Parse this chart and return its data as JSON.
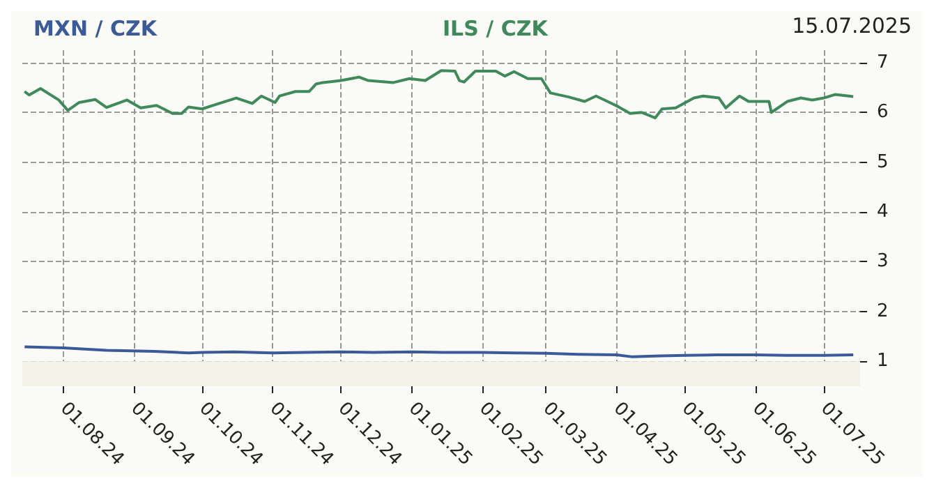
{
  "chart_data": {
    "type": "line",
    "annotations": [
      "15.07.2025"
    ],
    "legend": "top left",
    "grid": true,
    "line_style": "solid",
    "marker": "none",
    "xlim": [
      "2024-07-14",
      "2025-07-17"
    ],
    "ylim": [
      0.5,
      7.25
    ],
    "yticks": [
      1,
      2,
      3,
      4,
      5,
      6,
      7
    ],
    "xticks": [
      {
        "value": "2024-08-01",
        "label": "01.08.24"
      },
      {
        "value": "2024-09-01",
        "label": "01.09.24"
      },
      {
        "value": "2024-10-01",
        "label": "01.10.24"
      },
      {
        "value": "2024-11-01",
        "label": "01.11.24"
      },
      {
        "value": "2024-12-01",
        "label": "01.12.24"
      },
      {
        "value": "2025-01-01",
        "label": "01.01.25"
      },
      {
        "value": "2025-02-01",
        "label": "01.02.25"
      },
      {
        "value": "2025-03-01",
        "label": "01.03.25"
      },
      {
        "value": "2025-04-01",
        "label": "01.04.25"
      },
      {
        "value": "2025-05-01",
        "label": "01.05.25"
      },
      {
        "value": "2025-06-01",
        "label": "01.06.25"
      },
      {
        "value": "2025-07-01",
        "label": "01.07.25"
      }
    ],
    "bands": [
      {
        "axis": "y",
        "from": 0.5,
        "to": 1,
        "color": "#f2f2e8"
      }
    ],
    "series": [
      {
        "name": "MXN / CZK",
        "color": "#3a5a9a",
        "x": [
          "2024-07-15",
          "2024-08-01",
          "2024-08-20",
          "2024-09-10",
          "2024-09-25",
          "2024-10-01",
          "2024-10-15",
          "2024-11-01",
          "2024-11-15",
          "2024-12-01",
          "2024-12-15",
          "2025-01-01",
          "2025-01-15",
          "2025-02-01",
          "2025-02-15",
          "2025-03-01",
          "2025-03-15",
          "2025-04-01",
          "2025-04-08",
          "2025-04-20",
          "2025-05-01",
          "2025-05-15",
          "2025-06-01",
          "2025-06-15",
          "2025-07-01",
          "2025-07-14"
        ],
        "values": [
          1.29,
          1.27,
          1.22,
          1.2,
          1.17,
          1.18,
          1.19,
          1.17,
          1.18,
          1.19,
          1.18,
          1.19,
          1.18,
          1.18,
          1.17,
          1.16,
          1.14,
          1.13,
          1.09,
          1.11,
          1.12,
          1.13,
          1.13,
          1.12,
          1.12,
          1.13
        ]
      },
      {
        "name": "ILS / CZK",
        "color": "#3f8a5a",
        "x": [
          "2024-07-15",
          "2024-07-17",
          "2024-07-22",
          "2024-07-30",
          "2024-08-03",
          "2024-08-08",
          "2024-08-15",
          "2024-08-20",
          "2024-08-29",
          "2024-09-04",
          "2024-09-11",
          "2024-09-18",
          "2024-09-22",
          "2024-09-25",
          "2024-10-01",
          "2024-10-07",
          "2024-10-16",
          "2024-10-23",
          "2024-10-27",
          "2024-11-02",
          "2024-11-04",
          "2024-11-11",
          "2024-11-17",
          "2024-11-20",
          "2024-11-23",
          "2024-12-01",
          "2024-12-09",
          "2024-12-13",
          "2024-12-24",
          "2024-12-31",
          "2025-01-07",
          "2025-01-14",
          "2025-01-20",
          "2025-01-22",
          "2025-01-24",
          "2025-01-29",
          "2025-02-07",
          "2025-02-11",
          "2025-02-15",
          "2025-02-21",
          "2025-02-27",
          "2025-03-03",
          "2025-03-11",
          "2025-03-18",
          "2025-03-23",
          "2025-03-29",
          "2025-04-02",
          "2025-04-07",
          "2025-04-12",
          "2025-04-18",
          "2025-04-21",
          "2025-04-27",
          "2025-05-05",
          "2025-05-09",
          "2025-05-16",
          "2025-05-19",
          "2025-05-25",
          "2025-05-29",
          "2025-06-07",
          "2025-06-08",
          "2025-06-15",
          "2025-06-21",
          "2025-06-26",
          "2025-07-01",
          "2025-07-06",
          "2025-07-14"
        ],
        "values": [
          6.42,
          6.35,
          6.48,
          6.25,
          6.04,
          6.2,
          6.26,
          6.1,
          6.25,
          6.09,
          6.14,
          5.98,
          5.98,
          6.11,
          6.07,
          6.16,
          6.29,
          6.18,
          6.33,
          6.2,
          6.33,
          6.42,
          6.42,
          6.57,
          6.6,
          6.64,
          6.71,
          6.64,
          6.6,
          6.68,
          6.64,
          6.84,
          6.83,
          6.64,
          6.61,
          6.83,
          6.83,
          6.73,
          6.82,
          6.68,
          6.68,
          6.39,
          6.31,
          6.22,
          6.33,
          6.2,
          6.11,
          5.98,
          6,
          5.89,
          6.07,
          6.09,
          6.29,
          6.33,
          6.29,
          6.09,
          6.33,
          6.22,
          6.22,
          6,
          6.22,
          6.29,
          6.25,
          6.29,
          6.36,
          6.32
        ]
      }
    ]
  }
}
